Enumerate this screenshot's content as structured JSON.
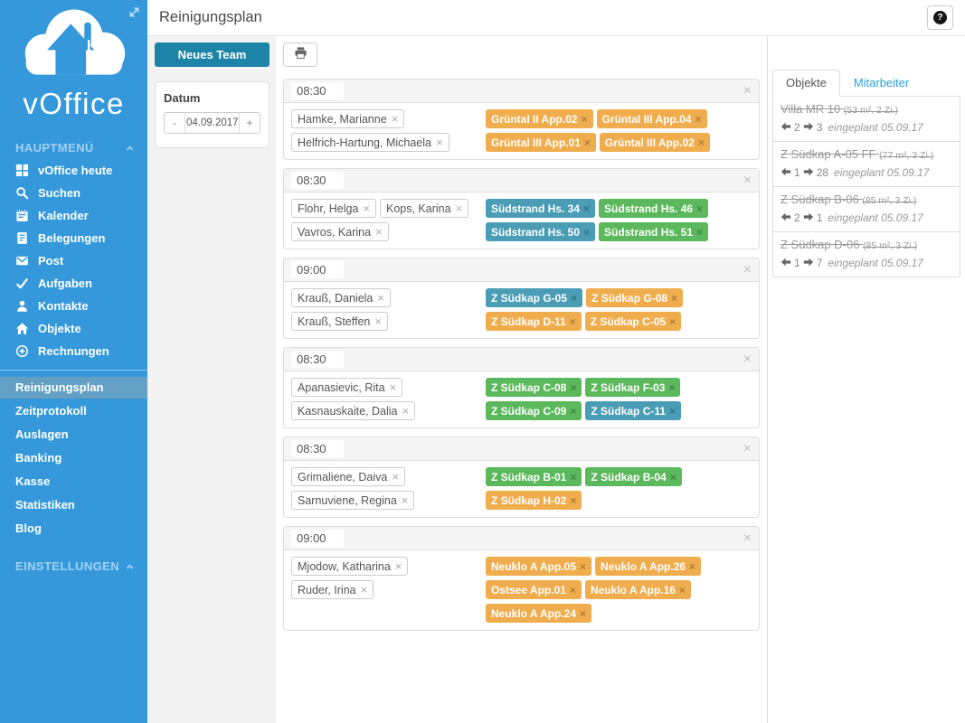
{
  "header": {
    "title": "Reinigungsplan",
    "help_label": "?"
  },
  "sidebar": {
    "logo_text": "vOffice",
    "sections": {
      "main": "HAUPTMENÜ",
      "settings": "EINSTELLUNGEN"
    },
    "main_items": [
      {
        "label": "vOffice heute",
        "icon": "grid-icon"
      },
      {
        "label": "Suchen",
        "icon": "search-icon"
      },
      {
        "label": "Kalender",
        "icon": "calendar-icon"
      },
      {
        "label": "Belegungen",
        "icon": "journal-icon"
      },
      {
        "label": "Post",
        "icon": "envelope-icon"
      },
      {
        "label": "Aufgaben",
        "icon": "check-icon"
      },
      {
        "label": "Kontakte",
        "icon": "person-icon"
      },
      {
        "label": "Objekte",
        "icon": "house-icon"
      },
      {
        "label": "Rechnungen",
        "icon": "plus-circle-icon"
      }
    ],
    "sub_items": [
      {
        "label": "Reinigungsplan",
        "active": true
      },
      {
        "label": "Zeitprotokoll",
        "active": false
      },
      {
        "label": "Auslagen",
        "active": false
      },
      {
        "label": "Banking",
        "active": false
      },
      {
        "label": "Kasse",
        "active": false
      },
      {
        "label": "Statistiken",
        "active": false
      },
      {
        "label": "Blog",
        "active": false
      }
    ]
  },
  "toolbar": {
    "new_team_label": "Neues Team",
    "date_label": "Datum",
    "date_value": "04.09.2017",
    "decrement_label": "-",
    "increment_label": "+",
    "print_icon": "printer-icon"
  },
  "teams": [
    {
      "time": "08:30",
      "members": [
        "Hamke, Marianne",
        "Helfrich-Hartung, Michaela"
      ],
      "objects": [
        {
          "label": "Grüntal II App.02",
          "color": "orange"
        },
        {
          "label": "Grüntal III App.04",
          "color": "orange"
        },
        {
          "label": "Grüntal III App.01",
          "color": "orange"
        },
        {
          "label": "Grüntal III App.02",
          "color": "orange"
        }
      ]
    },
    {
      "time": "08:30",
      "members": [
        "Flohr, Helga",
        "Kops, Karina",
        "Vavros, Karina"
      ],
      "objects": [
        {
          "label": "Südstrand Hs. 34",
          "color": "teal"
        },
        {
          "label": "Südstrand Hs. 46",
          "color": "green"
        },
        {
          "label": "Südstrand Hs. 50",
          "color": "teal"
        },
        {
          "label": "Südstrand Hs. 51",
          "color": "green"
        }
      ]
    },
    {
      "time": "09:00",
      "members": [
        "Krauß, Daniela",
        "Krauß, Steffen"
      ],
      "objects": [
        {
          "label": "Z Südkap G-05",
          "color": "teal"
        },
        {
          "label": "Z Südkap G-08",
          "color": "orange"
        },
        {
          "label": "Z Südkap D-11",
          "color": "orange"
        },
        {
          "label": "Z Südkap C-05",
          "color": "orange"
        }
      ]
    },
    {
      "time": "08:30",
      "members": [
        "Apanasievic, Rita",
        "Kasnauskaite, Dalia"
      ],
      "objects": [
        {
          "label": "Z Südkap C-08",
          "color": "green"
        },
        {
          "label": "Z Südkap F-03",
          "color": "green"
        },
        {
          "label": "Z Südkap C-09",
          "color": "green"
        },
        {
          "label": "Z Südkap C-11",
          "color": "teal"
        }
      ]
    },
    {
      "time": "08:30",
      "members": [
        "Grimaliene, Daiva",
        "Sarnuviene, Regina"
      ],
      "objects": [
        {
          "label": "Z Südkap B-01",
          "color": "green"
        },
        {
          "label": "Z Südkap B-04",
          "color": "green"
        },
        {
          "label": "Z Südkap H-02",
          "color": "orange"
        }
      ]
    },
    {
      "time": "09:00",
      "members": [
        "Mjodow, Katharina",
        "Ruder, Irina"
      ],
      "objects": [
        {
          "label": "Neuklo A App.05",
          "color": "orange"
        },
        {
          "label": "Neuklo A App.26",
          "color": "orange"
        },
        {
          "label": "Ostsee App.01",
          "color": "orange"
        },
        {
          "label": "Neuklo A App.16",
          "color": "orange"
        },
        {
          "label": "Neuklo A App.24",
          "color": "orange"
        }
      ]
    }
  ],
  "panel": {
    "tabs": [
      {
        "label": "Objekte",
        "active": true
      },
      {
        "label": "Mitarbeiter",
        "active": false
      }
    ],
    "objects": [
      {
        "name": "Villa MR 10",
        "details": "(53 m², 2 Zi.)",
        "back": "2",
        "forward": "3",
        "note": "eingeplant 05.09.17"
      },
      {
        "name": "Z Südkap A-05 FF",
        "details": "(77 m², 3 Zi.)",
        "back": "1",
        "forward": "28",
        "note": "eingeplant 05.09.17"
      },
      {
        "name": "Z Südkap B-06",
        "details": "(85 m², 3 Zi.)",
        "back": "2",
        "forward": "1",
        "note": "eingeplant 05.09.17"
      },
      {
        "name": "Z Südkap D-06",
        "details": "(85 m², 3 Zi.)",
        "back": "1",
        "forward": "7",
        "note": "eingeplant 05.09.17"
      }
    ]
  },
  "colors": {
    "sidebar_blue": "#3498db",
    "sidebar_active_item": "#64a0c4",
    "accent_button": "#1d84a8",
    "tag_orange": "#f0ad4e",
    "tag_teal": "#4a9db5",
    "tag_green": "#5cb85c",
    "link_blue": "#2b9fd9"
  }
}
